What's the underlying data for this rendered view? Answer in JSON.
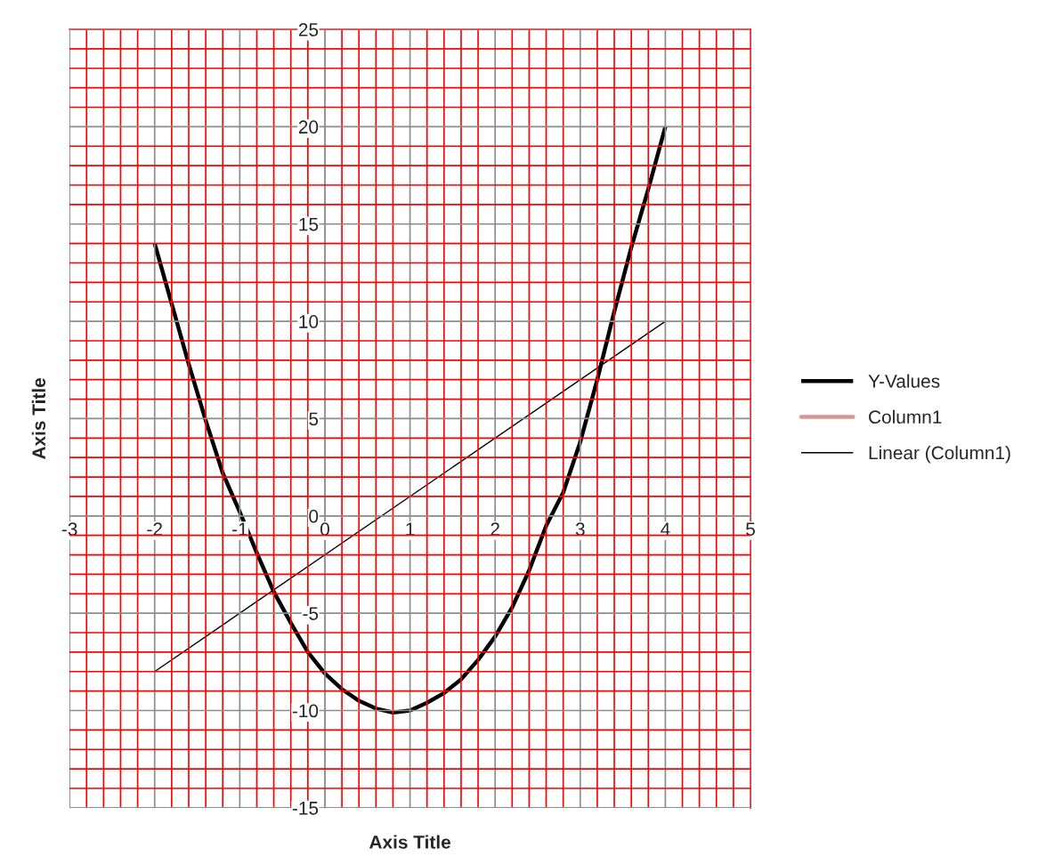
{
  "chart_data": {
    "type": "line",
    "xlabel": "Axis Title",
    "ylabel": "Axis Title",
    "xlim": [
      -3,
      5
    ],
    "ylim": [
      -15,
      25
    ],
    "xticks": [
      -3,
      -2,
      -1,
      0,
      1,
      2,
      3,
      4,
      5,
      {
        "value": -2.8,
        "label": null
      },
      {
        "value": -2.6,
        "label": null
      },
      {
        "value": -2.4,
        "label": null
      },
      {
        "value": -2.2,
        "label": null
      },
      {
        "value": -1.8,
        "label": null
      },
      {
        "value": -1.6,
        "label": null
      },
      {
        "value": -1.4,
        "label": null
      },
      {
        "value": -1.2,
        "label": null
      },
      {
        "value": -0.8,
        "label": null
      },
      {
        "value": -0.6,
        "label": null
      },
      {
        "value": -0.4,
        "label": null
      },
      {
        "value": -0.2,
        "label": null
      },
      {
        "value": 0.2,
        "label": null
      },
      {
        "value": 0.4,
        "label": null
      },
      {
        "value": 0.6,
        "label": null
      },
      {
        "value": 0.8,
        "label": null
      },
      {
        "value": 1.2,
        "label": null
      },
      {
        "value": 1.4,
        "label": null
      },
      {
        "value": 1.6,
        "label": null
      },
      {
        "value": 1.8,
        "label": null
      },
      {
        "value": 2.2,
        "label": null
      },
      {
        "value": 2.4,
        "label": null
      },
      {
        "value": 2.6,
        "label": null
      },
      {
        "value": 2.8,
        "label": null
      },
      {
        "value": 3.2,
        "label": null
      },
      {
        "value": 3.4,
        "label": null
      },
      {
        "value": 3.6,
        "label": null
      },
      {
        "value": 3.8,
        "label": null
      },
      {
        "value": 4.2,
        "label": null
      },
      {
        "value": 4.4,
        "label": null
      },
      {
        "value": 4.6,
        "label": null
      },
      {
        "value": 4.8,
        "label": null
      }
    ],
    "yticks": [
      -15,
      -10,
      -5,
      0,
      5,
      10,
      15,
      20,
      25,
      {
        "value": -14,
        "label": null
      },
      {
        "value": -13,
        "label": null
      },
      {
        "value": -12,
        "label": null
      },
      {
        "value": -11,
        "label": null
      },
      {
        "value": -9,
        "label": null
      },
      {
        "value": -8,
        "label": null
      },
      {
        "value": -7,
        "label": null
      },
      {
        "value": -6,
        "label": null
      },
      {
        "value": -4,
        "label": null
      },
      {
        "value": -3,
        "label": null
      },
      {
        "value": -2,
        "label": null
      },
      {
        "value": -1,
        "label": null
      },
      {
        "value": 1,
        "label": null
      },
      {
        "value": 2,
        "label": null
      },
      {
        "value": 3,
        "label": null
      },
      {
        "value": 4,
        "label": null
      },
      {
        "value": 6,
        "label": null
      },
      {
        "value": 7,
        "label": null
      },
      {
        "value": 8,
        "label": null
      },
      {
        "value": 9,
        "label": null
      },
      {
        "value": 11,
        "label": null
      },
      {
        "value": 12,
        "label": null
      },
      {
        "value": 13,
        "label": null
      },
      {
        "value": 14,
        "label": null
      },
      {
        "value": 16,
        "label": null
      },
      {
        "value": 17,
        "label": null
      },
      {
        "value": 18,
        "label": null
      },
      {
        "value": 19,
        "label": null
      },
      {
        "value": 21,
        "label": null
      },
      {
        "value": 22,
        "label": null
      },
      {
        "value": 23,
        "label": null
      },
      {
        "value": 24,
        "label": null
      }
    ],
    "grid": true,
    "legend": "right",
    "marker": "none",
    "series": [
      {
        "name": "Y-Values",
        "color": "#000000",
        "x": [
          -2,
          -1.8,
          -1.6,
          -1.4,
          -1.2,
          -1,
          -0.8,
          -0.6,
          -0.4,
          -0.2,
          0,
          0.2,
          0.4,
          0.6,
          0.8,
          1,
          1.2,
          1.4,
          1.6,
          1.8,
          2,
          2.2,
          2.4,
          2.6,
          2.8,
          3,
          3.2,
          3.4,
          3.6,
          3.8,
          4
        ],
        "values": [
          14,
          10.9,
          7.8,
          4.9,
          2.2,
          0.2,
          -1.9,
          -3.9,
          -5.5,
          -7,
          -8.1,
          -8.9,
          -9.5,
          -9.9,
          -10.1,
          -10,
          -9.6,
          -9.1,
          -8.4,
          -7.4,
          -6.2,
          -4.7,
          -2.8,
          -0.5,
          1.2,
          3.8,
          7,
          10.5,
          13.8,
          16.8,
          20
        ]
      },
      {
        "name": "Column1",
        "color": "#d99694"
      },
      {
        "name": "Linear (Column1)",
        "color": "#000000",
        "x": [
          -2,
          4
        ],
        "values": [
          -8,
          10
        ]
      }
    ]
  }
}
